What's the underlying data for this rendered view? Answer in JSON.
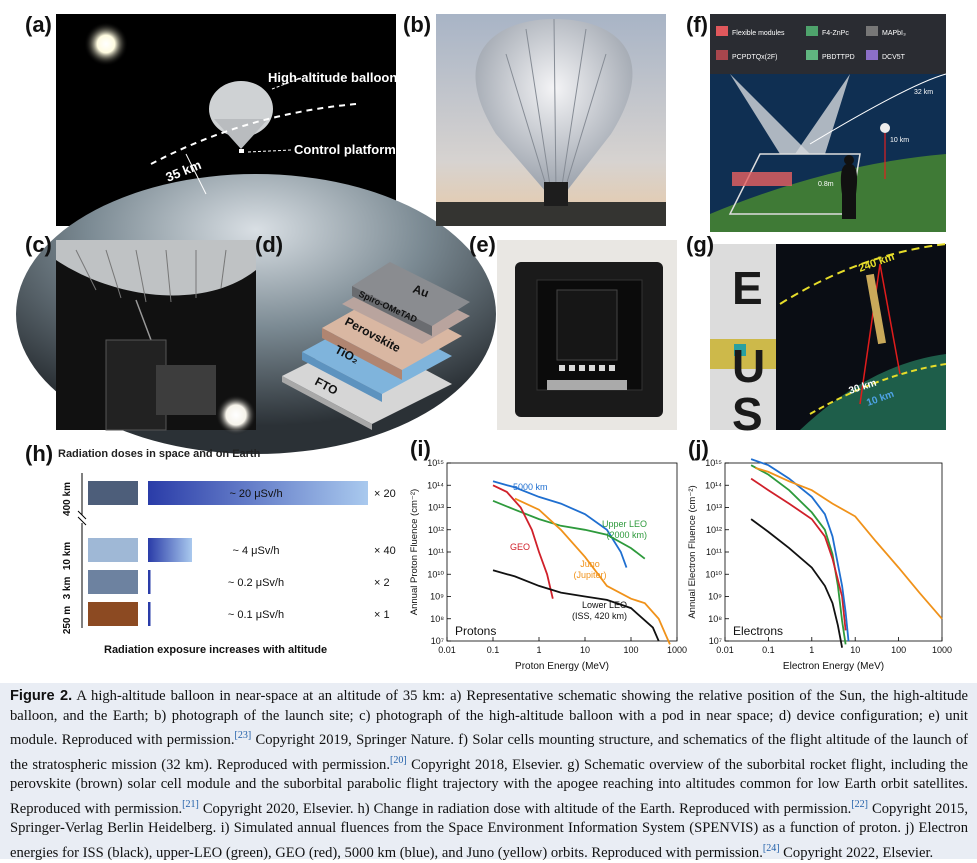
{
  "panels": {
    "a": {
      "label": "(a)",
      "balloon_label": "High-altitude balloon",
      "platform_label": "Control platform",
      "altitude": "35 km"
    },
    "b": {
      "label": "(b)"
    },
    "c": {
      "label": "(c)"
    },
    "d": {
      "label": "(d)",
      "layers": [
        "Au",
        "Spiro-OMeTAD",
        "Perovskite",
        "TiO₂",
        "FTO"
      ]
    },
    "e": {
      "label": "(e)"
    },
    "f": {
      "label": "(f)",
      "legend": [
        "Flexible modules",
        "F4-ZnPc",
        "MAPbI₃",
        "PCPDTQx(2F)",
        "PBDTTPD",
        "DCV5T"
      ],
      "alt_32": "32 km",
      "alt_10": "10 km",
      "height": "0.8m"
    },
    "g": {
      "label": "(g)",
      "letters": [
        "E",
        "U",
        "S"
      ],
      "alt_240": "240 km",
      "alt_30": "30 km",
      "alt_10": "10 km"
    },
    "h": {
      "label": "(h)",
      "title": "Radiation doses in space and on Earth",
      "rows": [
        {
          "altitude": "400 km",
          "dose": "~ 20 μSv/h",
          "factor": "× 20",
          "fill": 1.0
        },
        {
          "altitude": "10 km",
          "dose": "~ 4 μSv/h",
          "factor": "× 40",
          "fill": 0.2
        },
        {
          "altitude": "3 km",
          "dose": "~ 0.2 μSv/h",
          "factor": "× 2",
          "fill": 0.01
        },
        {
          "altitude": "250 m",
          "dose": "~ 0.1 μSv/h",
          "factor": "× 1",
          "fill": 0.005
        }
      ],
      "footer": "Radiation exposure increases with altitude"
    }
  },
  "chart_data": [
    {
      "panel": "(i)",
      "type": "line",
      "xlabel": "Proton Energy (MeV)",
      "ylabel": "Annual Proton Fluence (cm⁻²)",
      "xscale": "log",
      "yscale": "log",
      "xlim": [
        0.01,
        1000
      ],
      "ylim": [
        10000000.0,
        1000000000000000.0
      ],
      "xticks": [
        "0.01",
        "0.1",
        "1",
        "10",
        "100",
        "1000"
      ],
      "yticks": [
        "10⁷",
        "10⁸",
        "10⁹",
        "10¹⁰",
        "10¹¹",
        "10¹²",
        "10¹³",
        "10¹⁴",
        "10¹⁵"
      ],
      "annotation": "Protons",
      "series": [
        {
          "name": "5000 km",
          "color": "#1f6fd0",
          "points": [
            [
              0.1,
              150000000000000.0
            ],
            [
              0.3,
              80000000000000.0
            ],
            [
              1,
              30000000000000.0
            ],
            [
              3,
              15000000000000.0
            ],
            [
              10,
              5000000000000.0
            ],
            [
              30,
              1000000000000.0
            ],
            [
              60,
              100000000000.0
            ],
            [
              80,
              20000000000.0
            ]
          ]
        },
        {
          "name": "Upper LEO (2000 km)",
          "color": "#2e9a3c",
          "points": [
            [
              0.1,
              20000000000000.0
            ],
            [
              0.3,
              8000000000000.0
            ],
            [
              1,
              3000000000000.0
            ],
            [
              3,
              1500000000000.0
            ],
            [
              10,
              1000000000000.0
            ],
            [
              30,
              600000000000.0
            ],
            [
              100,
              150000000000.0
            ],
            [
              200,
              50000000000.0
            ]
          ]
        },
        {
          "name": "GEO",
          "color": "#d0202a",
          "points": [
            [
              0.1,
              100000000000000.0
            ],
            [
              0.2,
              50000000000000.0
            ],
            [
              0.4,
              10000000000000.0
            ],
            [
              0.7,
              1000000000000.0
            ],
            [
              1,
              100000000000.0
            ],
            [
              1.5,
              10000000000.0
            ],
            [
              2,
              800000000.0
            ]
          ]
        },
        {
          "name": "Juno (Jupiter)",
          "color": "#f0921a",
          "points": [
            [
              0.3,
              25000000000000.0
            ],
            [
              1,
              8000000000000.0
            ],
            [
              3,
              1000000000000.0
            ],
            [
              10,
              60000000000.0
            ],
            [
              30,
              3000000000.0
            ],
            [
              100,
              800000000.0
            ],
            [
              200,
              500000000.0
            ],
            [
              400,
              100000000.0
            ],
            [
              700,
              7000000.0
            ]
          ]
        },
        {
          "name": "Lower LEO (ISS, 420 km)",
          "color": "#111111",
          "points": [
            [
              0.1,
              15000000000.0
            ],
            [
              0.3,
              8000000000.0
            ],
            [
              1,
              3000000000.0
            ],
            [
              3,
              1500000000.0
            ],
            [
              10,
              1000000000.0
            ],
            [
              30,
              700000000.0
            ],
            [
              100,
              300000000.0
            ],
            [
              300,
              40000000.0
            ],
            [
              400,
              10000000.0
            ]
          ]
        }
      ]
    },
    {
      "panel": "(j)",
      "type": "line",
      "xlabel": "Electron Energy (MeV)",
      "ylabel": "Annual Electron Fluence (cm⁻²)",
      "xscale": "log",
      "yscale": "log",
      "xlim": [
        0.01,
        1000
      ],
      "ylim": [
        10000000.0,
        1000000000000000.0
      ],
      "xticks": [
        "0.01",
        "0.1",
        "1",
        "10",
        "100",
        "1000"
      ],
      "yticks": [
        "10⁷",
        "10⁸",
        "10⁹",
        "10¹⁰",
        "10¹¹",
        "10¹²",
        "10¹³",
        "10¹⁴",
        "10¹⁵"
      ],
      "annotation": "Electrons",
      "series": [
        {
          "name": "ISS",
          "color": "#111111",
          "points": [
            [
              0.04,
              3000000000000.0
            ],
            [
              0.1,
              800000000000.0
            ],
            [
              0.3,
              150000000000.0
            ],
            [
              1,
              20000000000.0
            ],
            [
              2,
              3000000000.0
            ],
            [
              3,
              500000000.0
            ],
            [
              4,
              50000000.0
            ],
            [
              5,
              5000000.0
            ]
          ]
        },
        {
          "name": "upper-LEO",
          "color": "#2e9a3c",
          "points": [
            [
              0.04,
              800000000000000.0
            ],
            [
              0.1,
              300000000000000.0
            ],
            [
              0.3,
              60000000000000.0
            ],
            [
              1,
              6000000000000.0
            ],
            [
              2,
              1000000000000.0
            ],
            [
              3,
              80000000000.0
            ],
            [
              4,
              3000000000.0
            ],
            [
              5,
              80000000.0
            ],
            [
              6,
              7000000.0
            ]
          ]
        },
        {
          "name": "GEO",
          "color": "#d0202a",
          "points": [
            [
              0.04,
              200000000000000.0
            ],
            [
              0.1,
              60000000000000.0
            ],
            [
              0.3,
              15000000000000.0
            ],
            [
              1,
              3000000000000.0
            ],
            [
              2,
              500000000000.0
            ],
            [
              3,
              50000000000.0
            ],
            [
              5,
              1000000000.0
            ],
            [
              6,
              30000000.0
            ]
          ]
        },
        {
          "name": "5000 km",
          "color": "#1f6fd0",
          "points": [
            [
              0.04,
              1500000000000000.0
            ],
            [
              0.1,
              800000000000000.0
            ],
            [
              0.3,
              200000000000000.0
            ],
            [
              1,
              30000000000000.0
            ],
            [
              2,
              5000000000000.0
            ],
            [
              3,
              500000000000.0
            ],
            [
              5,
              3000000000.0
            ],
            [
              6,
              200000000.0
            ],
            [
              7,
              10000000.0
            ]
          ]
        },
        {
          "name": "Juno",
          "color": "#f0921a",
          "points": [
            [
              0.05,
              600000000000000.0
            ],
            [
              0.1,
              400000000000000.0
            ],
            [
              0.3,
              150000000000000.0
            ],
            [
              1,
              60000000000000.0
            ],
            [
              3,
              15000000000000.0
            ],
            [
              10,
              4000000000000.0
            ],
            [
              30,
              300000000000.0
            ],
            [
              100,
              20000000000.0
            ],
            [
              300,
              1500000000.0
            ],
            [
              1000,
              100000000.0
            ]
          ]
        }
      ]
    }
  ],
  "caption": {
    "figure": "Figure 2.",
    "text_1": " A high-altitude balloon in near-space at an altitude of 35 km: a) Representative schematic showing the relative position of the Sun, the high-altitude balloon, and the Earth; b) photograph of the launch site; c) photograph of the high-altitude balloon with a pod in near space; d) device configuration; e) unit module. Reproduced with permission.",
    "ref_1": "[23]",
    "text_2": " Copyright 2019, Springer Nature. f) Solar cells mounting structure, and schematics of the flight altitude of the launch of the stratospheric mission (32 km). Reproduced with permission.",
    "ref_2": "[20]",
    "text_3": " Copyright 2018, Elsevier. g) Schematic overview of the suborbital rocket flight, including the perovskite (brown) solar cell module and the suborbital parabolic flight trajectory with the apogee reaching into altitudes common for low Earth orbit satellites. Reproduced with permission.",
    "ref_3": "[21]",
    "text_4": " Copyright 2020, Elsevier. h) Change in radiation dose with altitude of the Earth. Reproduced with permission.",
    "ref_4": "[22]",
    "text_5": " Copyright 2015, Springer-Verlag Berlin Heidelberg. i) Simulated annual fluences from the Space Environment Information System (SPENVIS) as a function of proton. j) Electron energies for ISS (black), upper-LEO (green), GEO (red), 5000 km (blue), and Juno (yellow) orbits. Reproduced with permission.",
    "ref_5": "[24]",
    "text_6": " Copyright 2022, Elsevier."
  }
}
